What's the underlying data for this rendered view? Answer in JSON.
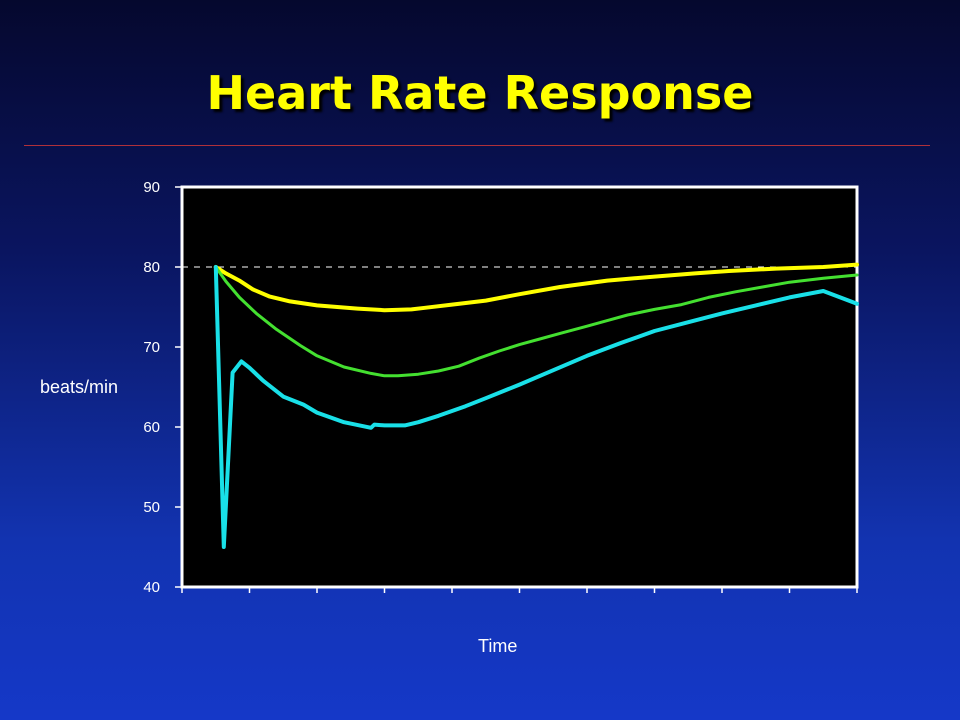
{
  "chart_data": {
    "type": "line",
    "title": "Heart Rate Response",
    "xlabel": "Time",
    "ylabel": "beats/min",
    "ylim": [
      40,
      90
    ],
    "yticks": [
      40,
      50,
      60,
      70,
      80,
      90
    ],
    "xlim": [
      0,
      100
    ],
    "x_tick_count": 10,
    "reference_line": {
      "y": 80,
      "style": "dashed",
      "color": "#ffffff"
    },
    "plot_background": "#000000",
    "series": [
      {
        "color": "#ffff00",
        "x": [
          5.0,
          6.5,
          8.5,
          10.5,
          13,
          16,
          20,
          26,
          30,
          34,
          36,
          40,
          45,
          50,
          56,
          63,
          70,
          76,
          81,
          88,
          95,
          100
        ],
        "y": [
          80,
          79.2,
          78.3,
          77.2,
          76.3,
          75.7,
          75.2,
          74.8,
          74.6,
          74.7,
          74.9,
          75.3,
          75.8,
          76.6,
          77.5,
          78.3,
          78.8,
          79.2,
          79.5,
          79.8,
          80.0,
          80.3
        ]
      },
      {
        "color": "#44e030",
        "x": [
          5.0,
          6.5,
          8.5,
          11,
          14,
          17.5,
          20,
          24,
          28,
          30,
          32,
          35,
          38,
          41,
          44,
          47,
          50,
          53,
          56,
          60,
          63,
          66,
          70,
          74,
          78,
          82,
          86,
          90,
          95,
          100
        ],
        "y": [
          80,
          78.2,
          76.2,
          74.2,
          72.2,
          70.2,
          68.9,
          67.5,
          66.7,
          66.4,
          66.4,
          66.6,
          67.0,
          67.6,
          68.6,
          69.5,
          70.3,
          71.0,
          71.7,
          72.6,
          73.3,
          74.0,
          74.7,
          75.3,
          76.2,
          76.9,
          77.5,
          78.1,
          78.6,
          79.0
        ]
      },
      {
        "color": "#19e0e8",
        "x": [
          5.0,
          6.2,
          7.5,
          8.8,
          10,
          12,
          15,
          18,
          20,
          24,
          28,
          28.5,
          30,
          33,
          35,
          38,
          42,
          45,
          50,
          55,
          60,
          65,
          70,
          75,
          80,
          85,
          90,
          95,
          100
        ],
        "y": [
          80,
          45.0,
          66.8,
          68.2,
          67.4,
          65.8,
          63.8,
          62.8,
          61.8,
          60.6,
          59.9,
          60.3,
          60.2,
          60.2,
          60.6,
          61.4,
          62.6,
          63.6,
          65.3,
          67.1,
          68.9,
          70.5,
          72.0,
          73.1,
          74.2,
          75.2,
          76.2,
          77.0,
          75.4
        ]
      }
    ]
  }
}
